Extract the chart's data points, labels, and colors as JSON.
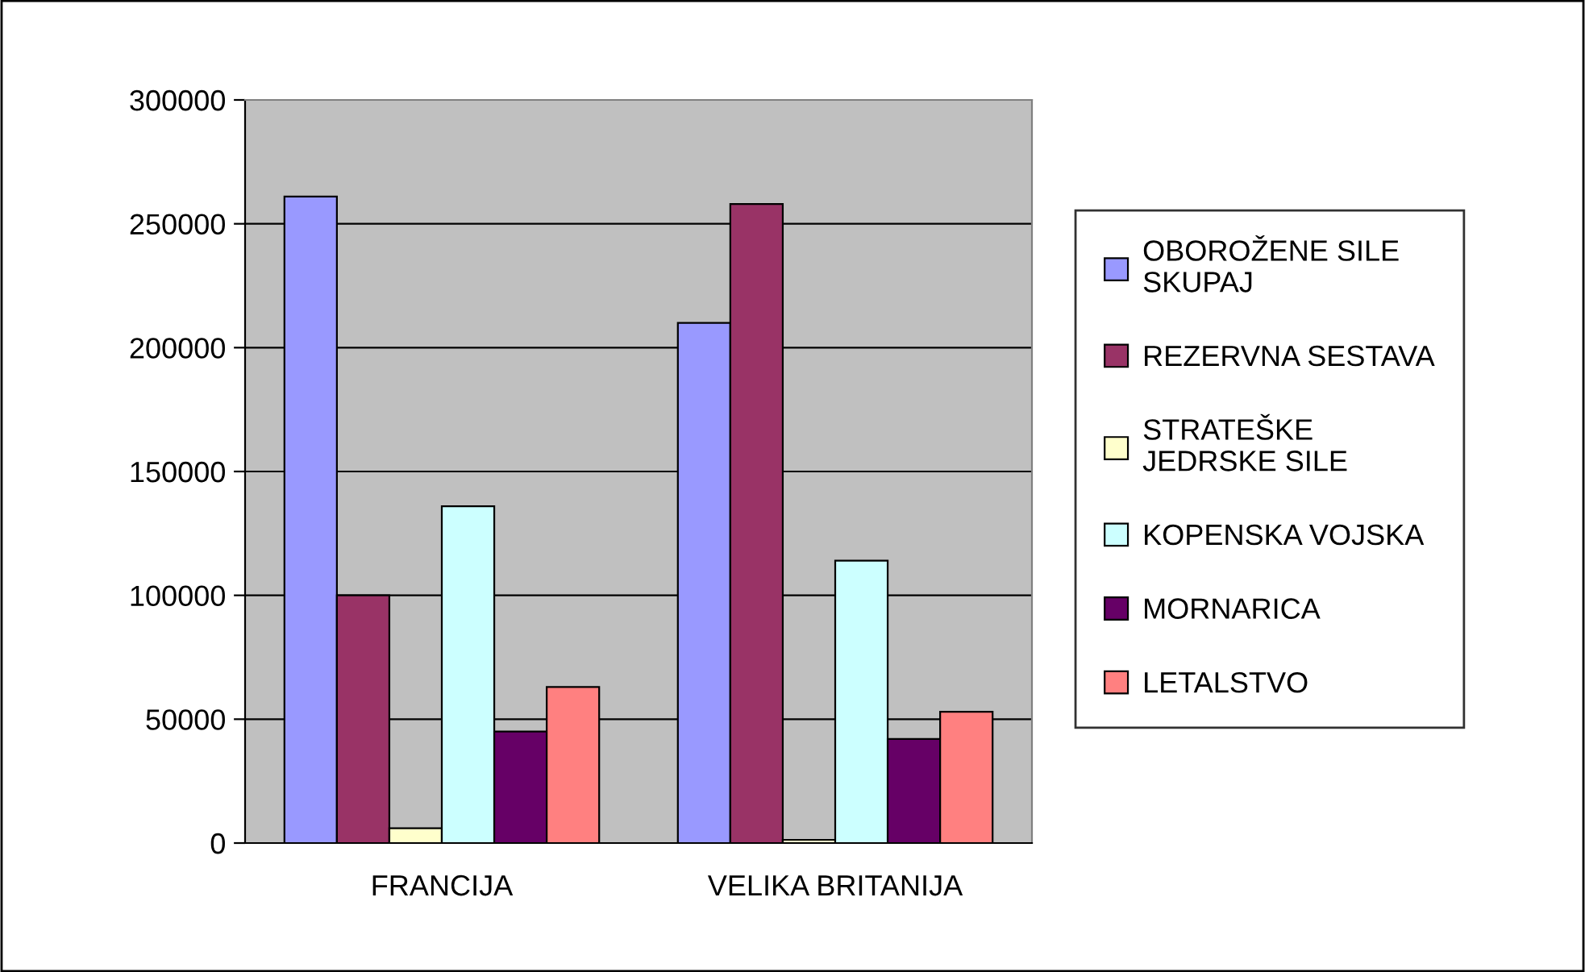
{
  "chart_data": {
    "type": "bar",
    "categories": [
      "FRANCIJA",
      "VELIKA BRITANIJA"
    ],
    "series": [
      {
        "name": "OBOROŽENE SILE\nSKUPAJ",
        "color": "#9999ff",
        "values": [
          261000,
          210000
        ]
      },
      {
        "name": "REZERVNA SESTAVA",
        "color": "#993366",
        "values": [
          100000,
          258000
        ]
      },
      {
        "name": "STRATEŠKE\nJEDRSKE SILE",
        "color": "#ffffcc",
        "values": [
          6000,
          1300
        ]
      },
      {
        "name": "KOPENSKA VOJSKA",
        "color": "#ccffff",
        "values": [
          136000,
          114000
        ]
      },
      {
        "name": "MORNARICA",
        "color": "#660066",
        "values": [
          45000,
          42000
        ]
      },
      {
        "name": "LETALSTVO",
        "color": "#ff8080",
        "values": [
          63000,
          53000
        ]
      }
    ],
    "ylim": [
      0,
      300000
    ],
    "yticks": [
      0,
      50000,
      100000,
      150000,
      200000,
      250000,
      300000
    ],
    "grid": "y",
    "legend": "right"
  }
}
